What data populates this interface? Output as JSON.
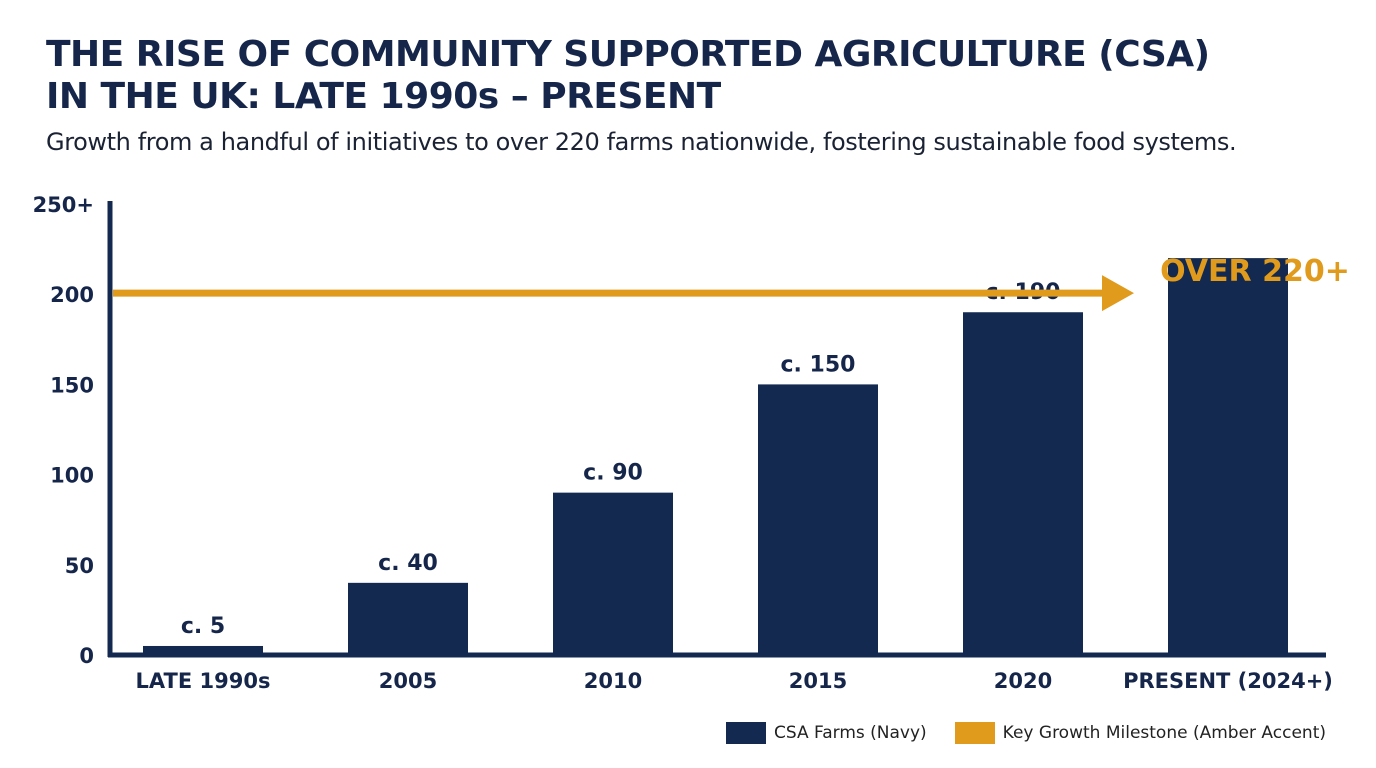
{
  "title_lines": [
    "THE RISE OF COMMUNITY SUPPORTED AGRICULTURE (CSA)",
    "IN THE UK: LATE 1990s – PRESENT"
  ],
  "subtitle": "Growth from a handful of initiatives to over 220 farms nationwide, fostering sustainable food systems.",
  "colors": {
    "navy": "#13294f",
    "amber": "#e09a1c",
    "text": "#15264a"
  },
  "chart_data": {
    "type": "bar",
    "title": "THE RISE OF COMMUNITY SUPPORTED AGRICULTURE (CSA) IN THE UK: LATE 1990s – PRESENT",
    "subtitle": "Growth from a handful of initiatives to over 220 farms nationwide, fostering sustainable food systems.",
    "categories": [
      "LATE 1990s",
      "2005",
      "2010",
      "2015",
      "2020",
      "PRESENT (2024+)"
    ],
    "series": [
      {
        "name": "CSA Farms (Navy)",
        "values": [
          5,
          40,
          90,
          150,
          190,
          220
        ]
      }
    ],
    "data_labels": [
      "c. 5",
      "c. 40",
      "c. 90",
      "c. 150",
      "c. 190",
      ""
    ],
    "y_ticks": [
      0,
      50,
      100,
      150,
      200,
      250
    ],
    "y_tick_labels": [
      "0",
      "50",
      "100",
      "150",
      "200",
      "250+"
    ],
    "ylim": [
      0,
      250
    ],
    "xlabel": "",
    "ylabel": "",
    "grid": false,
    "milestone": {
      "label": "OVER 220+",
      "value": 220,
      "points_to": "PRESENT (2024+)"
    },
    "legend": {
      "placement": "bottom-right",
      "entries": [
        {
          "label": "CSA Farms (Navy)",
          "color": "#13294f"
        },
        {
          "label": "Key Growth Milestone (Amber Accent)",
          "color": "#e09a1c"
        }
      ]
    }
  }
}
